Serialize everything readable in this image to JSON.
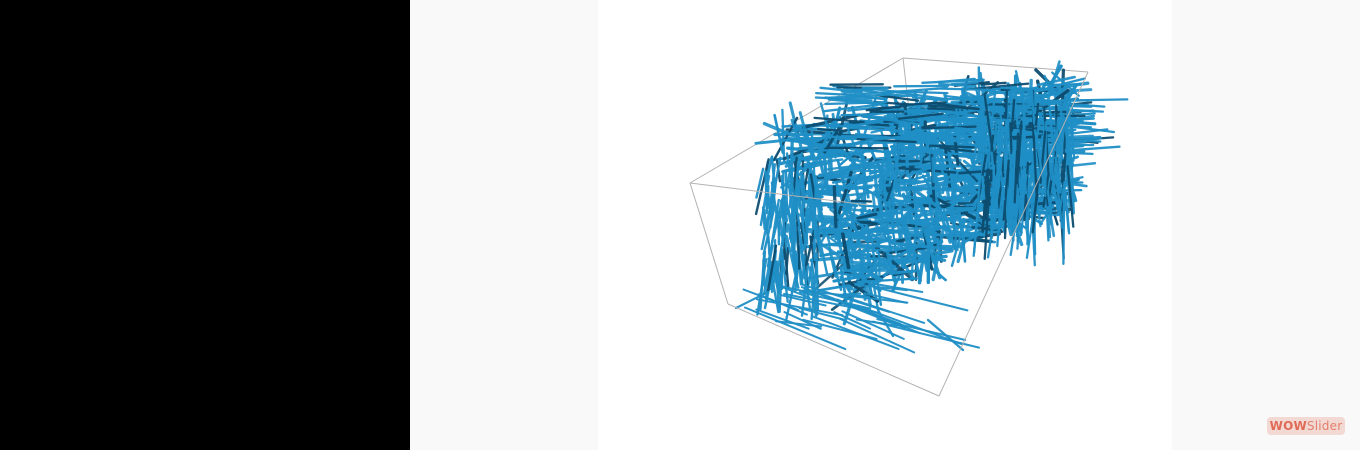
{
  "slider": {
    "watermark_part1": "WOW",
    "watermark_part2": "Slider"
  },
  "image": {
    "subject": "fiber-network-render",
    "fiber_color": "#1f8fc6",
    "fiber_dark_color": "#0d4d70",
    "box_edge_color": "#b3b3b3"
  }
}
